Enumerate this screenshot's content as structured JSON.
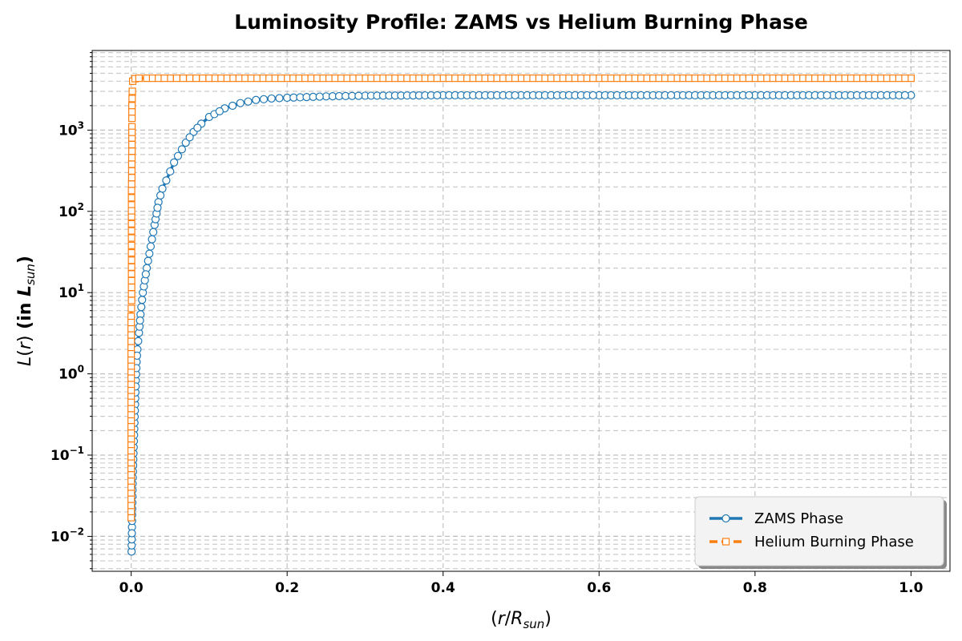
{
  "chart_data": {
    "type": "line",
    "title": "Luminosity Profile: ZAMS vs Helium Burning Phase",
    "xlabel": "(r/R_sun)",
    "ylabel": "L(r) (in L_sun)",
    "xlim": [
      -0.05,
      1.05
    ],
    "ylim_log10": [
      -2.43,
      3.98
    ],
    "yscale": "log",
    "grid": true,
    "legend_position": "bottom-right",
    "x_ticks": [
      "0.0",
      "0.2",
      "0.4",
      "0.6",
      "0.8",
      "1.0"
    ],
    "x_tick_values": [
      0.0,
      0.2,
      0.4,
      0.6,
      0.8,
      1.0
    ],
    "y_ticks": [
      {
        "base": "10",
        "exp": "−2",
        "value": 0.01
      },
      {
        "base": "10",
        "exp": "−1",
        "value": 0.1
      },
      {
        "base": "10",
        "exp": "0",
        "value": 1
      },
      {
        "base": "10",
        "exp": "1",
        "value": 10
      },
      {
        "base": "10",
        "exp": "2",
        "value": 100
      },
      {
        "base": "10",
        "exp": "3",
        "value": 1000
      }
    ],
    "series": [
      {
        "name": "ZAMS Phase",
        "color": "#1f77b4",
        "marker": "circle",
        "linestyle": "solid",
        "x": [
          0.0005,
          0.001,
          0.0015,
          0.002,
          0.003,
          0.004,
          0.005,
          0.006,
          0.007,
          0.008,
          0.01,
          0.012,
          0.015,
          0.02,
          0.025,
          0.03,
          0.035,
          0.04,
          0.045,
          0.05,
          0.055,
          0.06,
          0.07,
          0.08,
          0.09,
          0.1,
          0.12,
          0.14,
          0.16,
          0.18,
          0.2,
          0.25,
          0.3,
          0.4,
          0.5,
          0.6,
          0.7,
          0.8,
          0.9,
          1.0
        ],
        "y": [
          0.0065,
          0.013,
          0.026,
          0.053,
          0.105,
          0.21,
          0.42,
          0.83,
          1.4,
          2.0,
          3.2,
          5.4,
          10,
          20,
          37,
          68,
          130,
          190,
          240,
          310,
          400,
          480,
          700,
          950,
          1200,
          1450,
          1850,
          2150,
          2350,
          2450,
          2500,
          2600,
          2650,
          2680,
          2680,
          2680,
          2680,
          2680,
          2680,
          2680
        ]
      },
      {
        "name": "Helium Burning Phase",
        "color": "#ff7f0e",
        "marker": "square",
        "linestyle": "dashed",
        "x": [
          0.0,
          0.0,
          0.0,
          0.0,
          0.0,
          0.0,
          0.0,
          0.0,
          0.0,
          0.0,
          0.0005,
          0.0005,
          0.0005,
          0.0005,
          0.0005,
          0.0005,
          0.0005,
          0.0008,
          0.0008,
          0.001,
          0.001,
          0.001,
          0.001,
          0.001,
          0.0015,
          0.002,
          0.005,
          0.01,
          0.02,
          0.05,
          0.1,
          0.2,
          0.3,
          0.4,
          0.5,
          0.6,
          0.7,
          0.8,
          0.9,
          1.0
        ],
        "y": [
          0.017,
          0.034,
          0.068,
          0.134,
          0.265,
          0.53,
          1.05,
          2.1,
          3.6,
          5.1,
          8,
          14,
          25,
          47,
          86,
          120,
          180,
          260,
          380,
          550,
          800,
          1100,
          1400,
          2000,
          3000,
          4000,
          4300,
          4350,
          4350,
          4350,
          4350,
          4350,
          4350,
          4350,
          4350,
          4350,
          4350,
          4350,
          4350,
          4350
        ]
      }
    ]
  }
}
